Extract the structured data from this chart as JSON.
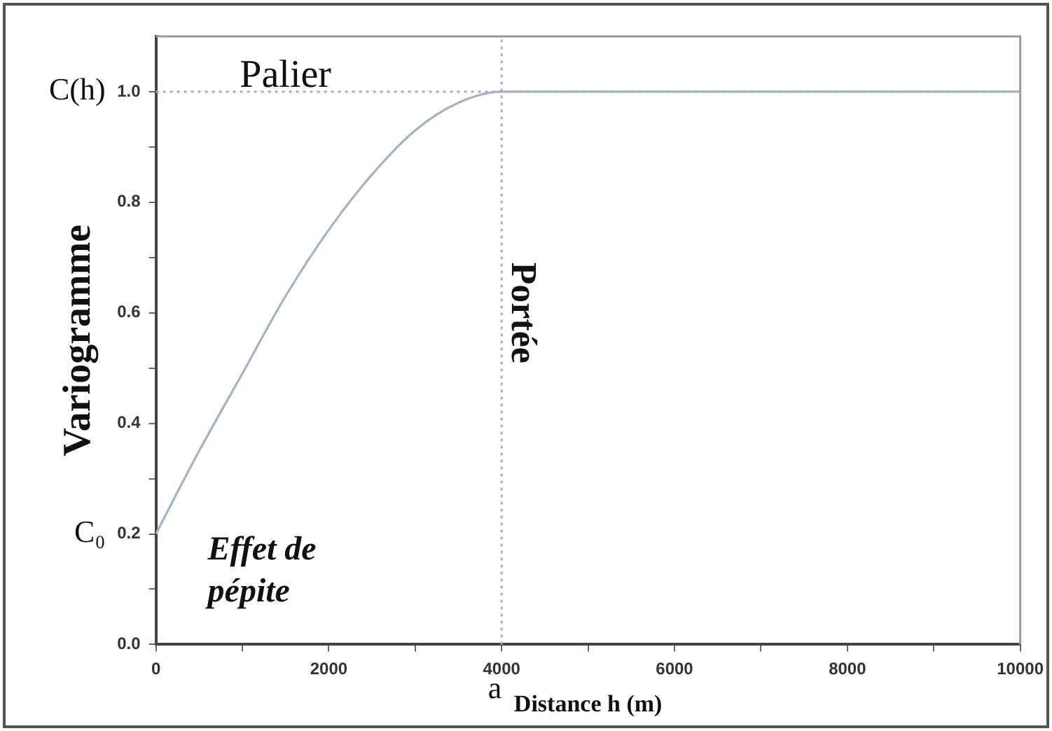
{
  "chart_data": {
    "type": "line",
    "xlabel": "Distance h (m)",
    "ylabel": "Variogramme",
    "x": [
      0,
      500,
      1000,
      1500,
      2000,
      2500,
      3000,
      3500,
      4000,
      10000
    ],
    "series": [
      {
        "color": "#a3b3c3",
        "values": [
          0.2,
          0.35,
          0.49,
          0.63,
          0.75,
          0.85,
          0.93,
          0.98,
          1.0,
          1.0
        ]
      }
    ],
    "xlim": [
      0,
      10000
    ],
    "xticks": [
      0,
      {
        "value": 1000,
        "label": null
      },
      2000,
      {
        "value": 3000,
        "label": null
      },
      4000,
      {
        "value": 5000,
        "label": null
      },
      6000,
      {
        "value": 7000,
        "label": null
      },
      8000,
      {
        "value": 9000,
        "label": null
      },
      10000
    ],
    "ylim": [
      0,
      1.1
    ],
    "yticks": [
      {
        "value": 0,
        "label": "0.0"
      },
      {
        "value": 0.1,
        "label": null
      },
      0.2,
      {
        "value": 0.3,
        "label": null
      },
      0.4,
      {
        "value": 0.5,
        "label": null
      },
      0.6,
      {
        "value": 0.7,
        "label": null
      },
      0.8,
      {
        "value": 0.9,
        "label": null
      },
      {
        "value": 1,
        "label": "1.0"
      }
    ],
    "ref_lines": [
      {
        "axis": "y",
        "value": 1,
        "color": "#c9a0a8",
        "line_style": "dotted"
      },
      {
        "axis": "x",
        "value": 4000,
        "color": "#c9a0a8",
        "line_style": "dotted"
      }
    ],
    "annotations": [
      "C(h)",
      {
        "text": "Palier",
        "x": 1500,
        "y": 1
      },
      {
        "text": "Portée",
        "x": 4000,
        "y": 0.6
      },
      "C₀",
      "Effet de pépite",
      "a"
    ],
    "grid": false,
    "legend": false,
    "marker": "none",
    "line_style": "solid"
  }
}
